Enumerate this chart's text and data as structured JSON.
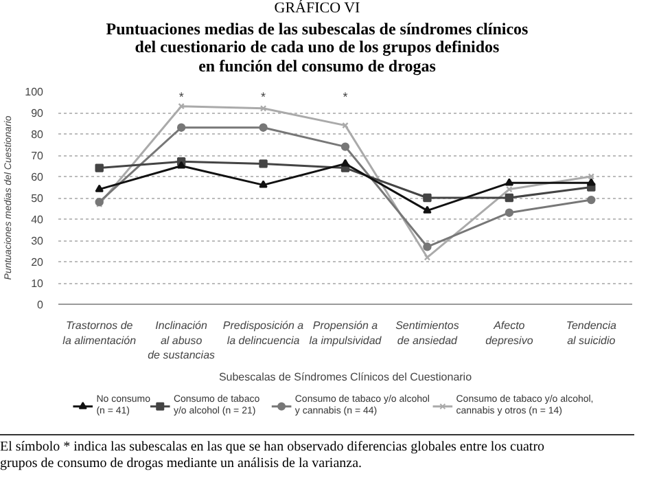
{
  "chart_data": {
    "type": "line",
    "title": "GRÁFICO VI",
    "subtitle": "Puntuaciones medias de las subescalas de síndromes clínicos\ndel cuestionario de cada uno de los grupos definidos\nen función del consumo de drogas",
    "xlabel": "Subescalas de Síndromes Clínicos del Cuestionario",
    "ylabel": "Puntuaciones medias del Cuestionario",
    "categories": [
      "Trastornos de\nla alimentación",
      "Inclinación\nal abuso\nde sustancias",
      "Predisposición a\nla delincuencia",
      "Propensión a\nla impulsividad",
      "Sentimientos\nde ansiedad",
      "Afecto\ndepresivo",
      "Tendencia\nal suicidio"
    ],
    "series": [
      {
        "name": "No consumo\n(n = 41)",
        "color": "#111111",
        "marker": "triangle",
        "values": [
          54,
          65,
          56,
          66,
          44,
          57,
          57
        ]
      },
      {
        "name": "Consumo de tabaco\ny/o alcohol (n = 21)",
        "color": "#444444",
        "marker": "square",
        "values": [
          64,
          67,
          66,
          64,
          50,
          50,
          55
        ]
      },
      {
        "name": "Consumo de tabaco y/o alcohol\ny cannabis (n = 44)",
        "color": "#777777",
        "marker": "circle",
        "values": [
          48,
          83,
          83,
          74,
          27,
          43,
          49
        ]
      },
      {
        "name": "Consumo de tabaco y/o alcohol,\ncannabis y otros (n = 14)",
        "color": "#aaaaaa",
        "marker": "cross",
        "values": [
          47,
          93,
          92,
          84,
          22,
          54,
          60
        ]
      }
    ],
    "ylim": [
      0,
      100
    ],
    "yticks": [
      0,
      10,
      20,
      30,
      40,
      50,
      60,
      70,
      80,
      90,
      100
    ],
    "grid": "y",
    "legend": "bottom",
    "annotations": [
      "*",
      "*",
      "*",
      "El símbolo * indica las subescalas en las que se han observado diferencias globales entre los cuatro\ngrupos de consumo de drogas mediante un análisis de la varianza."
    ]
  }
}
